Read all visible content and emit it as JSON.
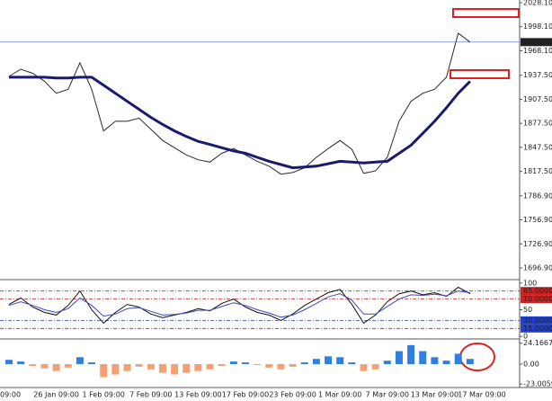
{
  "chart_data": [
    {
      "type": "line",
      "categories": [
        "09:00",
        null,
        null,
        null,
        "26 Jan 09:00",
        null,
        null,
        null,
        "1 Feb 09:00",
        null,
        null,
        null,
        "7 Feb 09:00",
        null,
        null,
        null,
        "13 Feb 09:00",
        null,
        null,
        null,
        "17 Feb 09:00",
        null,
        null,
        null,
        "23 Feb 09:00",
        null,
        null,
        null,
        "1 Mar 09:00",
        null,
        null,
        null,
        "7 Mar 09:00",
        null,
        null,
        null,
        "13 Mar 09:00",
        null,
        null,
        null,
        "17 Mar 09:00"
      ],
      "series": [
        {
          "color": "#2a2a2a",
          "values": [
            1936,
            1945,
            1940,
            1930,
            1915,
            1920,
            1953,
            1920,
            1868,
            1880,
            1880,
            1884,
            1870,
            1856,
            1847,
            1838,
            1832,
            1829,
            1840,
            1846,
            1838,
            1830,
            1824,
            1814,
            1816,
            1822,
            1835,
            1846,
            1856,
            1845,
            1815,
            1818,
            1835,
            1880,
            1905,
            1915,
            1920,
            1935,
            1990,
            1979,
            null
          ]
        },
        {
          "color": "#1a1a6e",
          "values": [
            1935,
            1935,
            1935,
            1935,
            1934,
            1934,
            1935,
            1935,
            1925,
            1915,
            1905,
            1895,
            1885,
            1876,
            1868,
            1861,
            1855,
            1851,
            1847,
            1843,
            1840,
            1835,
            1830,
            1826,
            1822,
            1823,
            1824,
            1827,
            1830,
            1829,
            1828,
            1829,
            1830,
            1840,
            1850,
            1865,
            1880,
            1897,
            1915,
            1930,
            null
          ]
        }
      ],
      "ylim": [
        1693.5,
        2031.5
      ],
      "yticks": [
        {
          "value": 2028.1,
          "label": "2028.10"
        },
        {
          "value": 1998.1,
          "label": "1998.10"
        },
        {
          "value": 1968.1,
          "label": "1968.10"
        },
        {
          "value": 1937.5,
          "label": "1937.50"
        },
        {
          "value": 1907.5,
          "label": "1907.50"
        },
        {
          "value": 1877.5,
          "label": "1877.50"
        },
        {
          "value": 1847.5,
          "label": "1847.50"
        },
        {
          "value": 1817.5,
          "label": "1817.50"
        },
        {
          "value": 1786.9,
          "label": "1786.90"
        },
        {
          "value": 1756.9,
          "label": "1756.90"
        },
        {
          "value": 1726.9,
          "label": "1726.90"
        },
        {
          "value": 1696.9,
          "label": "1696.90"
        }
      ],
      "current_price": 1978.91,
      "current_price_color": "#4a66d8"
    },
    {
      "type": "line",
      "series": [
        {
          "color": "#111111",
          "values": [
            60,
            72,
            55,
            45,
            40,
            58,
            85,
            50,
            25,
            45,
            60,
            55,
            42,
            35,
            40,
            45,
            52,
            48,
            62,
            70,
            55,
            45,
            40,
            30,
            42,
            58,
            70,
            82,
            88,
            60,
            25,
            40,
            65,
            80,
            85,
            78,
            82,
            75,
            92,
            80,
            null
          ]
        },
        {
          "color": "#3a48c8",
          "values": [
            58,
            65,
            58,
            50,
            45,
            52,
            72,
            58,
            38,
            42,
            52,
            54,
            47,
            40,
            41,
            44,
            49,
            49,
            56,
            63,
            58,
            50,
            44,
            36,
            40,
            50,
            62,
            74,
            80,
            68,
            42,
            42,
            56,
            70,
            78,
            77,
            79,
            76,
            85,
            82,
            null
          ]
        }
      ],
      "ylim": [
        -3,
        103
      ],
      "yticks": [
        100,
        {
          "value": 85,
          "label": "85.0000"
        },
        {
          "value": 70,
          "label": "70.0000"
        },
        50,
        {
          "value": 30,
          "label": "30.0000"
        },
        {
          "value": 15,
          "label": "15.0000"
        },
        0
      ],
      "upper_level_color": "#d42020",
      "lower_level_color": "#2040d0"
    },
    {
      "type": "bar",
      "values": [
        5,
        3,
        -2,
        -5,
        -8,
        -4,
        8,
        2,
        -15,
        -12,
        -8,
        -3,
        -6,
        -10,
        -12,
        -10,
        -8,
        -6,
        -2,
        3,
        2,
        -1,
        -4,
        -6,
        -3,
        2,
        6,
        9,
        8,
        2,
        -8,
        -6,
        4,
        15,
        22,
        15,
        8,
        4,
        12,
        6,
        null
      ],
      "color_positive": "#2f7fe0",
      "color_negative": "#f4a070",
      "ylim": [
        -26,
        27
      ],
      "yticks": [
        24.1667,
        {
          "value": 0,
          "label": "0.00"
        },
        -23.0059
      ]
    }
  ]
}
